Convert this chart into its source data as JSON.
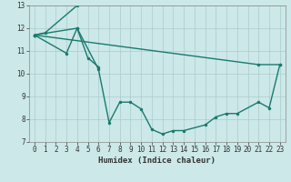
{
  "xlabel": "Humidex (Indice chaleur)",
  "bg_color": "#cce8e8",
  "grid_color": "#aacccc",
  "line_color": "#1a7a6e",
  "xlim": [
    -0.5,
    23.5
  ],
  "ylim": [
    7,
    13
  ],
  "yticks": [
    7,
    8,
    9,
    10,
    11,
    12,
    13
  ],
  "xticks": [
    0,
    1,
    2,
    3,
    4,
    5,
    6,
    7,
    8,
    9,
    10,
    11,
    12,
    13,
    14,
    15,
    16,
    17,
    18,
    19,
    20,
    21,
    22,
    23
  ],
  "line1_x": [
    0,
    1,
    4
  ],
  "line1_y": [
    11.7,
    11.8,
    13.0
  ],
  "line2_x": [
    0,
    3,
    4,
    5,
    6
  ],
  "line2_y": [
    11.7,
    10.9,
    12.0,
    10.7,
    10.3
  ],
  "line3_x": [
    0,
    4,
    6,
    7,
    8,
    9,
    10,
    11,
    12,
    13,
    14,
    16,
    17,
    18,
    19,
    21,
    22,
    23
  ],
  "line3_y": [
    11.7,
    12.0,
    10.2,
    7.85,
    8.75,
    8.75,
    8.45,
    7.55,
    7.35,
    7.5,
    7.5,
    7.75,
    8.1,
    8.25,
    8.25,
    8.75,
    8.5,
    10.4
  ],
  "line4_x": [
    0,
    21,
    23
  ],
  "line4_y": [
    11.7,
    10.4,
    10.4
  ],
  "tick_fontsize": 5.5,
  "xlabel_fontsize": 6.5
}
